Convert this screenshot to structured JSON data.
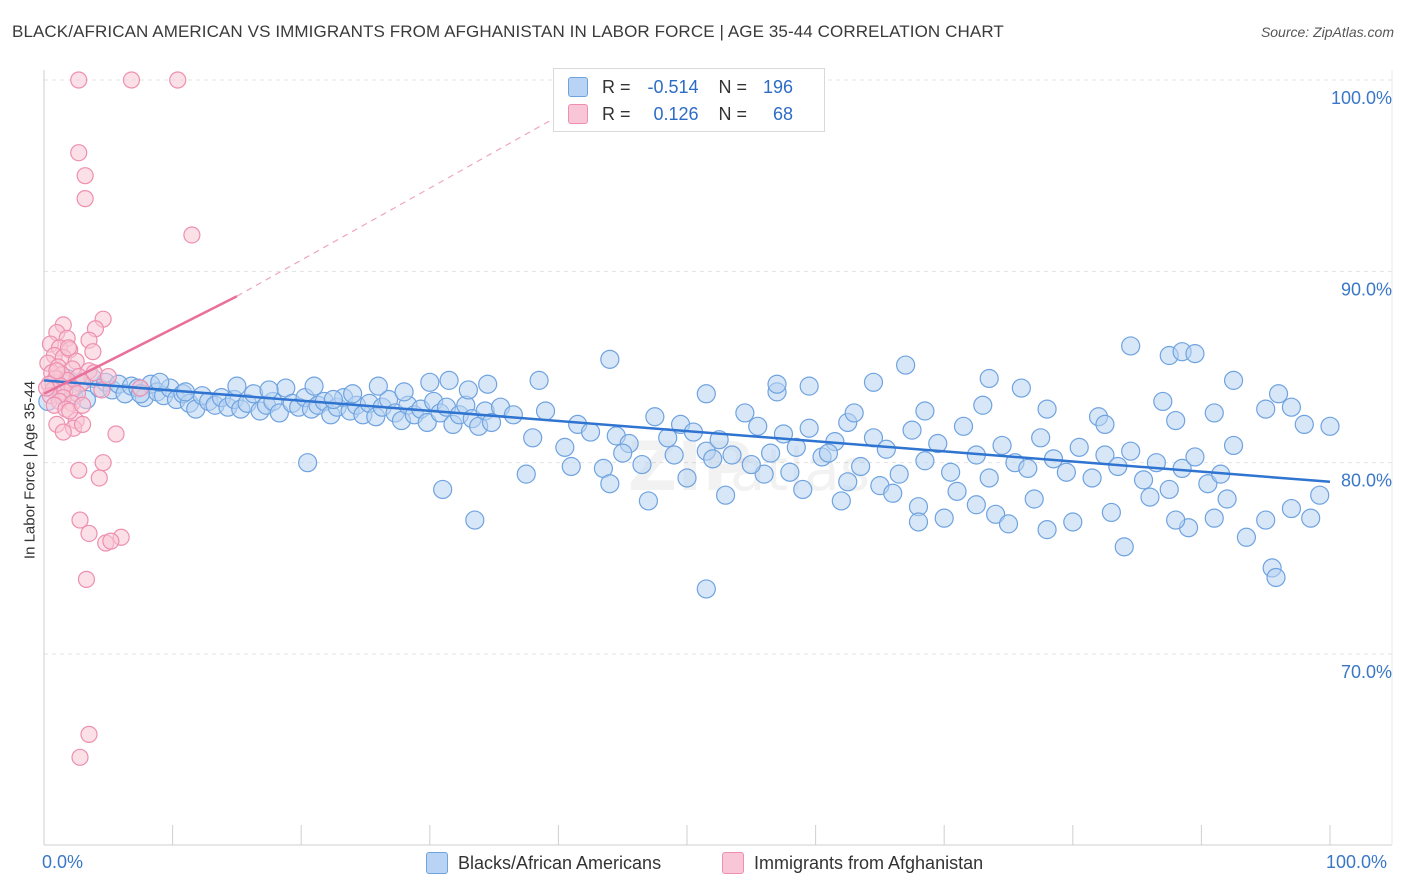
{
  "header": {
    "title": "BLACK/AFRICAN AMERICAN VS IMMIGRANTS FROM AFGHANISTAN IN LABOR FORCE | AGE 35-44 CORRELATION CHART",
    "source": "Source: ZipAtlas.com"
  },
  "legend": {
    "rows": [
      {
        "r_label": "R =",
        "r_value": "-0.514",
        "n_label": "N =",
        "n_value": "196"
      },
      {
        "r_label": "R =",
        "r_value": "0.126",
        "n_label": "N =",
        "n_value": "68"
      }
    ]
  },
  "colors": {
    "blue_fill": "#b8d3f3",
    "blue_stroke": "#6fa3e0",
    "blue_line": "#2f74d0",
    "pink_fill": "#f8c6d6",
    "pink_stroke": "#ee8fb0",
    "pink_line": "#e8709a",
    "grid": "#e3e3e3",
    "axis_text": "#3a78c7"
  },
  "chart_data": {
    "type": "scatter",
    "title": "BLACK/AFRICAN AMERICAN VS IMMIGRANTS FROM AFGHANISTAN IN LABOR FORCE | AGE 35-44 CORRELATION CHART",
    "xlabel": "",
    "ylabel": "In Labor Force | Age 35-44",
    "xlim": [
      0,
      100
    ],
    "ylim": [
      62,
      101
    ],
    "x_tick_labels": [
      "0.0%",
      "100.0%"
    ],
    "y_ticks": [
      70,
      80,
      90,
      100
    ],
    "y_tick_labels": [
      "70.0%",
      "80.0%",
      "90.0%",
      "100.0%"
    ],
    "grid": true,
    "legend_position": "bottom",
    "series": [
      {
        "name": "Blacks/African Americans",
        "r": -0.514,
        "n": 196,
        "trend": [
          [
            0,
            84.3
          ],
          [
            100,
            79.0
          ]
        ],
        "points": [
          [
            0.3,
            83.2
          ],
          [
            0.8,
            84.1
          ],
          [
            1.3,
            83.6
          ],
          [
            1.8,
            84.4
          ],
          [
            2.3,
            83.5
          ],
          [
            2.8,
            84.2
          ],
          [
            3.3,
            83.3
          ],
          [
            3.8,
            84.4
          ],
          [
            4.3,
            83.9
          ],
          [
            4.8,
            84.2
          ],
          [
            5.3,
            83.8
          ],
          [
            5.8,
            84.1
          ],
          [
            6.3,
            83.6
          ],
          [
            6.8,
            84.0
          ],
          [
            7.3,
            83.9
          ],
          [
            7.8,
            83.4
          ],
          [
            8.3,
            84.1
          ],
          [
            8.8,
            83.7
          ],
          [
            9.3,
            83.5
          ],
          [
            9.8,
            83.9
          ],
          [
            10.3,
            83.3
          ],
          [
            10.8,
            83.6
          ],
          [
            11.3,
            83.1
          ],
          [
            11.8,
            82.8
          ],
          [
            12.3,
            83.5
          ],
          [
            12.8,
            83.2
          ],
          [
            13.3,
            83.0
          ],
          [
            13.8,
            83.4
          ],
          [
            14.3,
            82.9
          ],
          [
            14.8,
            83.3
          ],
          [
            15.3,
            82.8
          ],
          [
            15.8,
            83.1
          ],
          [
            16.3,
            83.6
          ],
          [
            16.8,
            82.7
          ],
          [
            17.3,
            83.0
          ],
          [
            17.8,
            83.2
          ],
          [
            18.3,
            82.6
          ],
          [
            18.8,
            83.9
          ],
          [
            19.3,
            83.1
          ],
          [
            19.8,
            82.9
          ],
          [
            20.3,
            83.4
          ],
          [
            20.8,
            82.8
          ],
          [
            21.3,
            83.0
          ],
          [
            21.8,
            83.2
          ],
          [
            22.3,
            82.5
          ],
          [
            22.8,
            82.9
          ],
          [
            23.3,
            83.4
          ],
          [
            23.8,
            82.7
          ],
          [
            24.3,
            83.0
          ],
          [
            24.8,
            82.5
          ],
          [
            25.3,
            83.1
          ],
          [
            25.8,
            82.4
          ],
          [
            26.3,
            82.9
          ],
          [
            26.8,
            83.3
          ],
          [
            27.3,
            82.6
          ],
          [
            27.8,
            82.2
          ],
          [
            28.3,
            83.0
          ],
          [
            28.8,
            82.5
          ],
          [
            29.3,
            82.8
          ],
          [
            29.8,
            82.1
          ],
          [
            30.3,
            83.2
          ],
          [
            30.8,
            82.6
          ],
          [
            31.3,
            82.9
          ],
          [
            31.8,
            82.0
          ],
          [
            32.3,
            82.5
          ],
          [
            32.8,
            83.0
          ],
          [
            33.3,
            82.3
          ],
          [
            33.8,
            81.9
          ],
          [
            34.3,
            82.7
          ],
          [
            34.8,
            82.1
          ],
          [
            7.5,
            83.6
          ],
          [
            9.0,
            84.2
          ],
          [
            11.0,
            83.7
          ],
          [
            15.0,
            84.0
          ],
          [
            17.5,
            83.8
          ],
          [
            21.0,
            84.0
          ],
          [
            22.5,
            83.3
          ],
          [
            24.0,
            83.6
          ],
          [
            26.0,
            84.0
          ],
          [
            28.0,
            83.7
          ],
          [
            30.0,
            84.2
          ],
          [
            31.5,
            84.3
          ],
          [
            33.0,
            83.8
          ],
          [
            35.5,
            82.9
          ],
          [
            36.5,
            82.5
          ],
          [
            38.0,
            81.3
          ],
          [
            39.0,
            82.7
          ],
          [
            40.5,
            80.8
          ],
          [
            41.5,
            82.0
          ],
          [
            42.5,
            81.6
          ],
          [
            43.5,
            79.7
          ],
          [
            44.5,
            81.4
          ],
          [
            45.5,
            81.0
          ],
          [
            46.5,
            79.9
          ],
          [
            47.5,
            82.4
          ],
          [
            48.5,
            81.3
          ],
          [
            49.5,
            82.0
          ],
          [
            50.5,
            81.6
          ],
          [
            51.5,
            80.6
          ],
          [
            52.5,
            81.2
          ],
          [
            53.5,
            80.4
          ],
          [
            54.5,
            82.6
          ],
          [
            55.5,
            81.9
          ],
          [
            56.5,
            80.5
          ],
          [
            57.5,
            81.5
          ],
          [
            58.5,
            80.8
          ],
          [
            59.5,
            81.8
          ],
          [
            60.5,
            80.3
          ],
          [
            61.5,
            81.1
          ],
          [
            62.5,
            82.1
          ],
          [
            63.5,
            79.8
          ],
          [
            64.5,
            81.3
          ],
          [
            65.5,
            80.7
          ],
          [
            66.5,
            79.4
          ],
          [
            67.5,
            81.7
          ],
          [
            68.5,
            80.1
          ],
          [
            69.5,
            81.0
          ],
          [
            70.5,
            79.5
          ],
          [
            71.5,
            81.9
          ],
          [
            72.5,
            80.4
          ],
          [
            73.5,
            79.2
          ],
          [
            74.5,
            80.9
          ],
          [
            75.5,
            80.0
          ],
          [
            76.5,
            79.7
          ],
          [
            77.5,
            81.3
          ],
          [
            78.5,
            80.2
          ],
          [
            79.5,
            79.5
          ],
          [
            80.5,
            80.8
          ],
          [
            81.5,
            79.2
          ],
          [
            82.5,
            80.4
          ],
          [
            83.5,
            79.8
          ],
          [
            84.5,
            80.6
          ],
          [
            85.5,
            79.1
          ],
          [
            86.5,
            80.0
          ],
          [
            87.5,
            78.6
          ],
          [
            88.5,
            79.7
          ],
          [
            89.5,
            80.3
          ],
          [
            90.5,
            78.9
          ],
          [
            91.5,
            79.4
          ],
          [
            92.5,
            80.9
          ],
          [
            37.5,
            79.4
          ],
          [
            41.0,
            79.8
          ],
          [
            44.0,
            78.9
          ],
          [
            47.0,
            78.0
          ],
          [
            50.0,
            79.2
          ],
          [
            53.0,
            78.3
          ],
          [
            56.0,
            79.4
          ],
          [
            59.0,
            78.6
          ],
          [
            62.0,
            78.0
          ],
          [
            65.0,
            78.8
          ],
          [
            68.0,
            77.7
          ],
          [
            71.0,
            78.5
          ],
          [
            74.0,
            77.3
          ],
          [
            77.0,
            78.1
          ],
          [
            80.0,
            76.9
          ],
          [
            83.0,
            77.4
          ],
          [
            86.0,
            78.2
          ],
          [
            89.0,
            76.6
          ],
          [
            92.0,
            78.1
          ],
          [
            95.0,
            77.0
          ],
          [
            34.5,
            84.1
          ],
          [
            38.5,
            84.3
          ],
          [
            44.0,
            85.4
          ],
          [
            51.5,
            83.6
          ],
          [
            57.0,
            83.7
          ],
          [
            63.0,
            82.6
          ],
          [
            68.5,
            82.7
          ],
          [
            73.0,
            83.0
          ],
          [
            78.0,
            82.8
          ],
          [
            82.0,
            82.4
          ],
          [
            87.0,
            83.2
          ],
          [
            91.0,
            82.6
          ],
          [
            95.0,
            82.8
          ],
          [
            98.0,
            82.0
          ],
          [
            100.0,
            81.9
          ],
          [
            84.5,
            86.1
          ],
          [
            87.5,
            85.6
          ],
          [
            88.5,
            85.8
          ],
          [
            89.5,
            85.7
          ],
          [
            92.5,
            84.3
          ],
          [
            96.0,
            83.6
          ],
          [
            97.0,
            82.9
          ],
          [
            67.0,
            85.1
          ],
          [
            73.5,
            84.4
          ],
          [
            64.5,
            84.2
          ],
          [
            59.5,
            84.0
          ],
          [
            57.0,
            84.1
          ],
          [
            76.0,
            83.9
          ],
          [
            82.5,
            82.0
          ],
          [
            88.0,
            82.2
          ],
          [
            33.5,
            77.0
          ],
          [
            51.5,
            73.4
          ],
          [
            68.0,
            76.9
          ],
          [
            70.0,
            77.1
          ],
          [
            72.5,
            77.8
          ],
          [
            75.0,
            76.8
          ],
          [
            78.0,
            76.5
          ],
          [
            84.0,
            75.6
          ],
          [
            88.0,
            77.0
          ],
          [
            91.0,
            77.1
          ],
          [
            93.5,
            76.1
          ],
          [
            95.5,
            74.5
          ],
          [
            95.8,
            74.0
          ],
          [
            97.0,
            77.6
          ],
          [
            98.5,
            77.1
          ],
          [
            99.2,
            78.3
          ],
          [
            20.5,
            80.0
          ],
          [
            31.0,
            78.6
          ],
          [
            58.0,
            79.5
          ],
          [
            66.0,
            78.4
          ],
          [
            61.0,
            80.5
          ],
          [
            45.0,
            80.5
          ],
          [
            49.0,
            80.4
          ],
          [
            52.0,
            80.2
          ],
          [
            55.0,
            79.9
          ],
          [
            62.5,
            79.0
          ]
        ]
      },
      {
        "name": "Immigrants from Afghanistan",
        "r": 0.126,
        "n": 68,
        "trend": [
          [
            0,
            83.6
          ],
          [
            15,
            88.7
          ]
        ],
        "trend_extended": [
          [
            15,
            88.7
          ],
          [
            45,
            100.0
          ]
        ],
        "points": [
          [
            2.7,
            100.0
          ],
          [
            6.8,
            100.0
          ],
          [
            10.4,
            100.0
          ],
          [
            2.7,
            96.2
          ],
          [
            3.2,
            95.0
          ],
          [
            3.2,
            93.8
          ],
          [
            11.5,
            91.9
          ],
          [
            4.6,
            87.5
          ],
          [
            1.5,
            87.2
          ],
          [
            4.0,
            87.0
          ],
          [
            1.0,
            86.8
          ],
          [
            1.8,
            86.5
          ],
          [
            3.5,
            86.4
          ],
          [
            0.5,
            86.2
          ],
          [
            1.2,
            86.0
          ],
          [
            2.0,
            85.9
          ],
          [
            3.8,
            85.8
          ],
          [
            0.8,
            85.6
          ],
          [
            1.5,
            85.5
          ],
          [
            2.5,
            85.3
          ],
          [
            0.3,
            85.2
          ],
          [
            1.1,
            85.0
          ],
          [
            2.2,
            84.9
          ],
          [
            3.5,
            84.8
          ],
          [
            0.6,
            84.7
          ],
          [
            1.4,
            84.6
          ],
          [
            2.7,
            84.5
          ],
          [
            0.9,
            84.4
          ],
          [
            1.8,
            84.3
          ],
          [
            3.0,
            84.2
          ],
          [
            0.4,
            84.1
          ],
          [
            1.3,
            84.0
          ],
          [
            2.2,
            83.9
          ],
          [
            0.7,
            83.8
          ],
          [
            1.6,
            83.7
          ],
          [
            2.6,
            83.6
          ],
          [
            0.5,
            83.5
          ],
          [
            1.5,
            83.4
          ],
          [
            4.5,
            83.8
          ],
          [
            7.5,
            83.9
          ],
          [
            1.2,
            83.2
          ],
          [
            2.2,
            83.1
          ],
          [
            0.8,
            83.0
          ],
          [
            1.7,
            82.8
          ],
          [
            2.5,
            82.2
          ],
          [
            1.0,
            82.0
          ],
          [
            2.3,
            81.8
          ],
          [
            5.6,
            81.5
          ],
          [
            1.5,
            81.6
          ],
          [
            3.0,
            82.0
          ],
          [
            4.6,
            80.0
          ],
          [
            2.7,
            79.6
          ],
          [
            4.3,
            79.2
          ],
          [
            2.8,
            77.0
          ],
          [
            3.5,
            76.3
          ],
          [
            4.8,
            75.8
          ],
          [
            6.0,
            76.1
          ],
          [
            5.2,
            75.9
          ],
          [
            3.3,
            73.9
          ],
          [
            3.5,
            65.8
          ],
          [
            2.8,
            64.6
          ],
          [
            3.9,
            84.7
          ],
          [
            5.0,
            84.5
          ],
          [
            0.2,
            83.9
          ],
          [
            2.0,
            82.7
          ],
          [
            3.0,
            83.0
          ],
          [
            1.0,
            84.8
          ],
          [
            1.9,
            86.0
          ]
        ]
      }
    ]
  },
  "bottom_legend": {
    "items": [
      "Blacks/African Americans",
      "Immigrants from Afghanistan"
    ]
  }
}
